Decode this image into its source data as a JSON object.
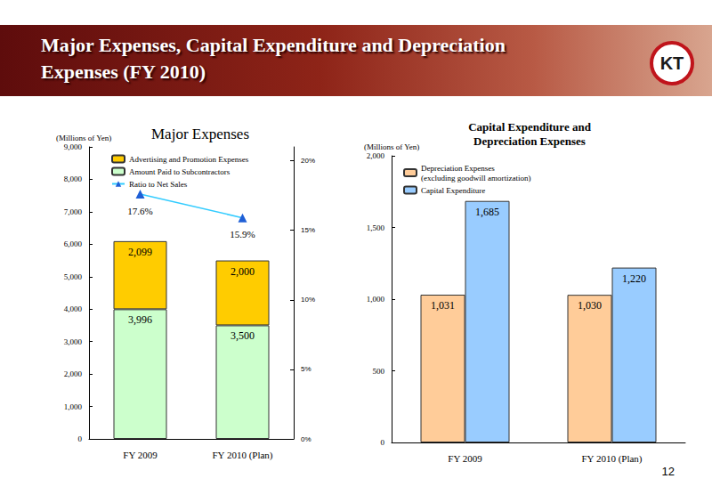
{
  "header": {
    "title": "Major Expenses, Capital Expenditure and Depreciation Expenses (FY 2010)",
    "logo": "KT"
  },
  "page_number": "12",
  "chart_data": [
    {
      "type": "bar",
      "title": "Major Expenses",
      "y_label": "(Millions of Yen)",
      "categories": [
        "FY 2009",
        "FY 2010 (Plan)"
      ],
      "stacked": true,
      "data_labels": true,
      "grid": false,
      "legend": "top-left",
      "series": [
        {
          "name": "Advertising and Promotion Expenses",
          "type": "bar",
          "color": "#ffcc00",
          "values": [
            2099,
            2000
          ],
          "value_labels": [
            "2,099",
            "2,000"
          ]
        },
        {
          "name": "Amount Paid to Subcontractors",
          "type": "bar",
          "color": "#ccffcc",
          "values": [
            3996,
            3500
          ],
          "value_labels": [
            "3,996",
            "3,500"
          ]
        },
        {
          "name": "Ratio to Net Sales",
          "type": "line",
          "axis": "y2",
          "color": "#33ccff",
          "marker": "triangle",
          "values": [
            17.6,
            15.9
          ],
          "value_labels": [
            "17.6%",
            "15.9%"
          ]
        }
      ],
      "ylim": [
        0,
        9000
      ],
      "yticks": [
        0,
        {
          "value": 1000,
          "label": "1,000"
        },
        {
          "value": 2000,
          "label": "2,000"
        },
        {
          "value": 3000,
          "label": "3,000"
        },
        {
          "value": 4000,
          "label": "4,000"
        },
        {
          "value": 5000,
          "label": "5,000"
        },
        {
          "value": 6000,
          "label": "6,000"
        },
        {
          "value": 7000,
          "label": "7,000"
        },
        {
          "value": 8000,
          "label": "8,000"
        },
        {
          "value": 9000,
          "label": "9,000"
        }
      ],
      "y2lim": [
        0,
        21
      ],
      "y2ticks": [
        {
          "value": 0,
          "label": "0%"
        },
        {
          "value": 5,
          "label": "5%"
        },
        {
          "value": 10,
          "label": "10%"
        },
        {
          "value": 15,
          "label": "15%"
        },
        {
          "value": 20,
          "label": "20%"
        }
      ]
    },
    {
      "type": "bar",
      "title": "Capital Expenditure and Depreciation Expenses",
      "y_label": "(Millions of Yen)",
      "categories": [
        "FY 2009",
        "FY 2010 (Plan)"
      ],
      "stacked": false,
      "data_labels": true,
      "grid": false,
      "legend": "top-left",
      "series": [
        {
          "name": "Depreciation Expenses (excluding goodwill amortization)",
          "type": "bar",
          "color": "#ffcc99",
          "values": [
            1031,
            1030
          ],
          "value_labels": [
            "1,031",
            "1,030"
          ]
        },
        {
          "name": "Capital Expenditure",
          "type": "bar",
          "color": "#99ccff",
          "values": [
            1685,
            1220
          ],
          "value_labels": [
            "1,685",
            "1,220"
          ]
        }
      ],
      "ylim": [
        0,
        2000
      ],
      "yticks": [
        0,
        500,
        {
          "value": 1000,
          "label": "1,000"
        },
        {
          "value": 1500,
          "label": "1,500"
        },
        {
          "value": 2000,
          "label": "2,000"
        }
      ]
    }
  ]
}
